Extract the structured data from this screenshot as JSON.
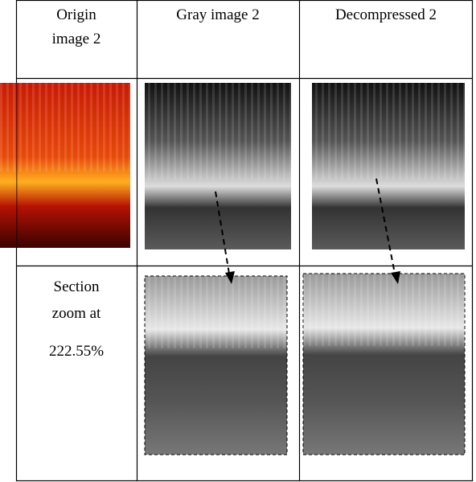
{
  "header": [
    [
      "Origin",
      "image 2"
    ],
    [
      "Gray image 2"
    ],
    [
      "Decompressed 2"
    ]
  ],
  "zoom_label": [
    "Section",
    "zoom at",
    "222.55%"
  ]
}
